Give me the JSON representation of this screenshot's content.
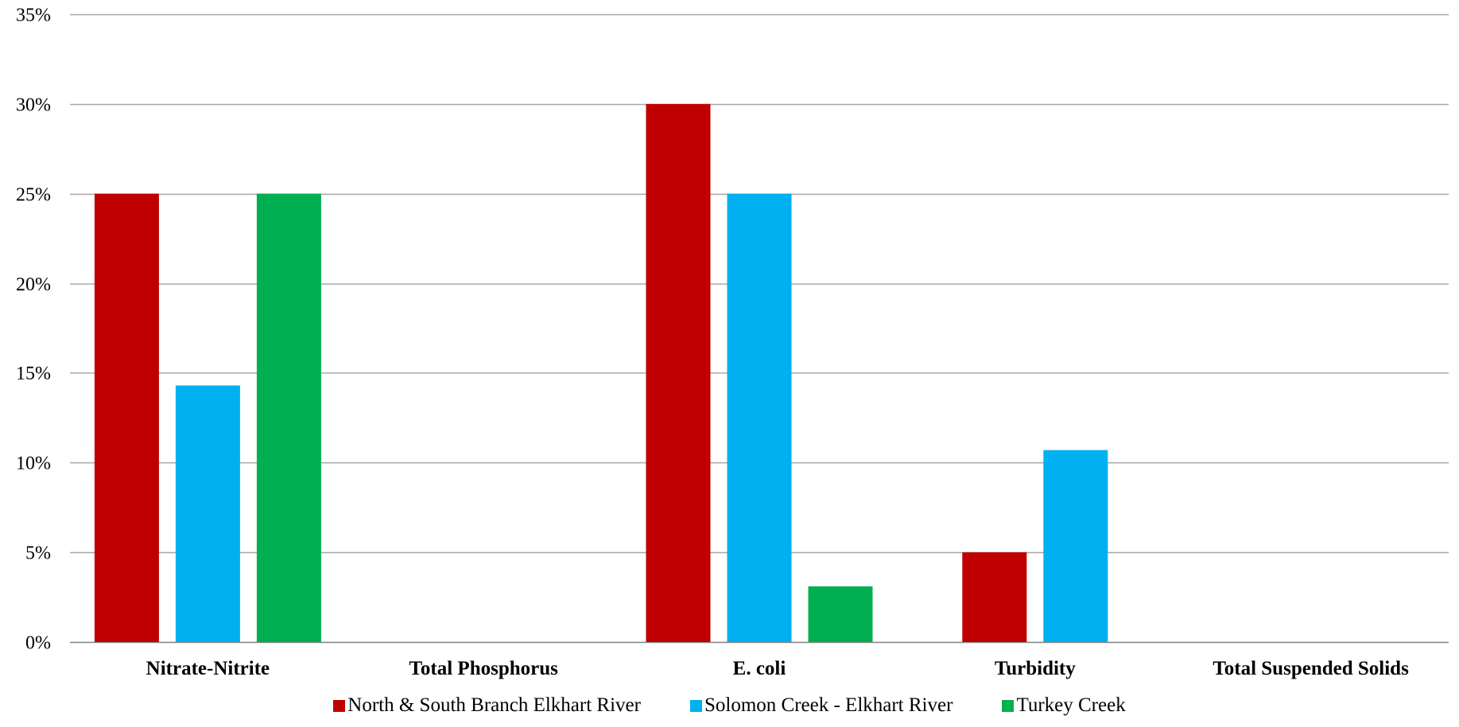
{
  "chart_data": {
    "type": "bar",
    "title": "",
    "xlabel": "",
    "ylabel": "",
    "categories": [
      "Nitrate-Nitrite",
      "Total Phosphorus",
      "E. coli",
      "Turbidity",
      "Total Suspended Solids"
    ],
    "series": [
      {
        "name": "North & South Branch Elkhart River",
        "color": "#c00000",
        "values": [
          25,
          0,
          30,
          5,
          0
        ]
      },
      {
        "name": "Solomon Creek - Elkhart River",
        "color": "#00b0f0",
        "values": [
          14.3,
          0,
          25,
          10.7,
          0
        ]
      },
      {
        "name": "Turkey Creek",
        "color": "#00b050",
        "values": [
          25,
          0,
          3.1,
          0,
          0
        ]
      }
    ],
    "ylim": [
      0,
      35
    ],
    "yticks": [
      0,
      5,
      10,
      15,
      20,
      25,
      30,
      35
    ],
    "ytick_labels": [
      "0%",
      "5%",
      "10%",
      "15%",
      "20%",
      "25%",
      "30%",
      "35%"
    ],
    "grid": true,
    "legend_position": "bottom",
    "colors": {
      "gridline": "#a6a6a6",
      "axis": "#808080"
    }
  }
}
